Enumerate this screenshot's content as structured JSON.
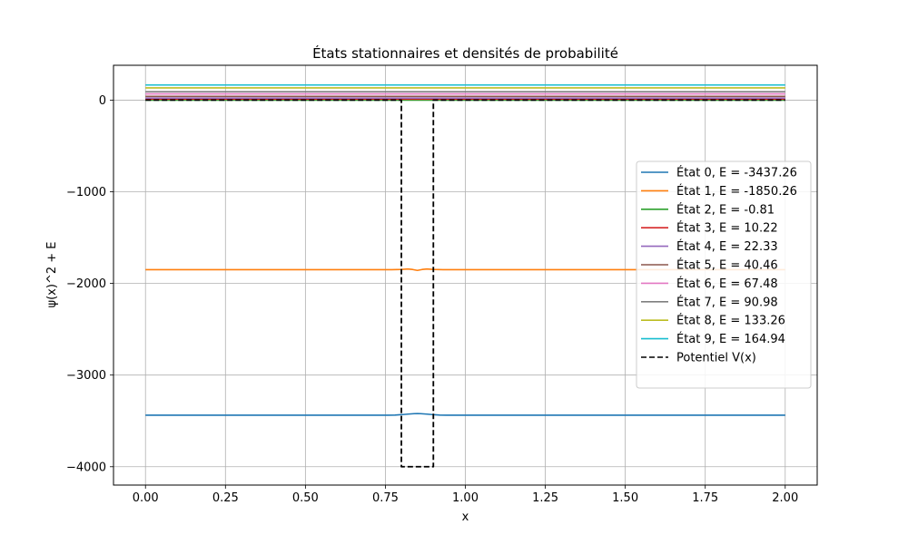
{
  "chart_data": {
    "type": "line",
    "title": "États stationnaires et densités de probabilité",
    "xlabel": "x",
    "ylabel": "ψ(x)^2 + E",
    "xlim": [
      -0.1,
      2.1
    ],
    "ylim": [
      -4200,
      380
    ],
    "xticks": [
      0.0,
      0.25,
      0.5,
      0.75,
      1.0,
      1.25,
      1.5,
      1.75,
      2.0
    ],
    "xtick_labels": [
      "0.00",
      "0.25",
      "0.50",
      "0.75",
      "1.00",
      "1.25",
      "1.50",
      "1.75",
      "2.00"
    ],
    "yticks": [
      0,
      -1000,
      -2000,
      -3000,
      -4000
    ],
    "ytick_labels": [
      "0",
      "−1000",
      "−2000",
      "−3000",
      "−4000"
    ],
    "grid": true,
    "legend_position": "right",
    "series": [
      {
        "name": "État 0, E = -3437.26",
        "color": "#1f77b4",
        "style": "solid",
        "x": [
          0,
          0.76,
          0.78,
          0.8,
          0.82,
          0.84,
          0.85,
          0.86,
          0.88,
          0.9,
          0.92,
          0.94,
          2.0
        ],
        "y": [
          -3437.26,
          -3437.26,
          -3436,
          -3432,
          -3426,
          -3421,
          -3420,
          -3421,
          -3426,
          -3432,
          -3436,
          -3437.26,
          -3437.26
        ]
      },
      {
        "name": "État 1, E = -1850.26",
        "color": "#ff7f0e",
        "style": "solid",
        "x": [
          0,
          0.77,
          0.8,
          0.82,
          0.835,
          0.85,
          0.865,
          0.88,
          0.9,
          0.93,
          2.0
        ],
        "y": [
          -1850.26,
          -1850.26,
          -1848,
          -1843,
          -1848,
          -1858,
          -1848,
          -1843,
          -1848,
          -1850.26,
          -1850.26
        ]
      },
      {
        "name": "État 2, E = -0.81",
        "color": "#2ca02c",
        "style": "solid",
        "x": [
          0,
          2.0
        ],
        "y": [
          -0.81,
          -0.81
        ]
      },
      {
        "name": "État 3, E = 10.22",
        "color": "#d62728",
        "style": "solid",
        "x": [
          0,
          2.0
        ],
        "y": [
          10.22,
          10.22
        ]
      },
      {
        "name": "État 4, E = 22.33",
        "color": "#9467bd",
        "style": "solid",
        "x": [
          0,
          2.0
        ],
        "y": [
          22.33,
          22.33
        ]
      },
      {
        "name": "État 5, E = 40.46",
        "color": "#8c564b",
        "style": "solid",
        "x": [
          0,
          2.0
        ],
        "y": [
          40.46,
          40.46
        ]
      },
      {
        "name": "État 6, E = 67.48",
        "color": "#e377c2",
        "style": "solid",
        "x": [
          0,
          2.0
        ],
        "y": [
          67.48,
          67.48
        ]
      },
      {
        "name": "État 7, E = 90.98",
        "color": "#7f7f7f",
        "style": "solid",
        "x": [
          0,
          2.0
        ],
        "y": [
          90.98,
          90.98
        ]
      },
      {
        "name": "État 8, E = 133.26",
        "color": "#bcbd22",
        "style": "solid",
        "x": [
          0,
          2.0
        ],
        "y": [
          133.26,
          133.26
        ]
      },
      {
        "name": "État 9, E = 164.94",
        "color": "#17becf",
        "style": "solid",
        "x": [
          0,
          2.0
        ],
        "y": [
          164.94,
          164.94
        ]
      },
      {
        "name": "Potentiel V(x)",
        "color": "#000000",
        "style": "dashed",
        "x": [
          0,
          0.8,
          0.8,
          0.9,
          0.9,
          2.0
        ],
        "y": [
          0,
          0,
          -4000,
          -4000,
          0,
          0
        ]
      }
    ]
  }
}
